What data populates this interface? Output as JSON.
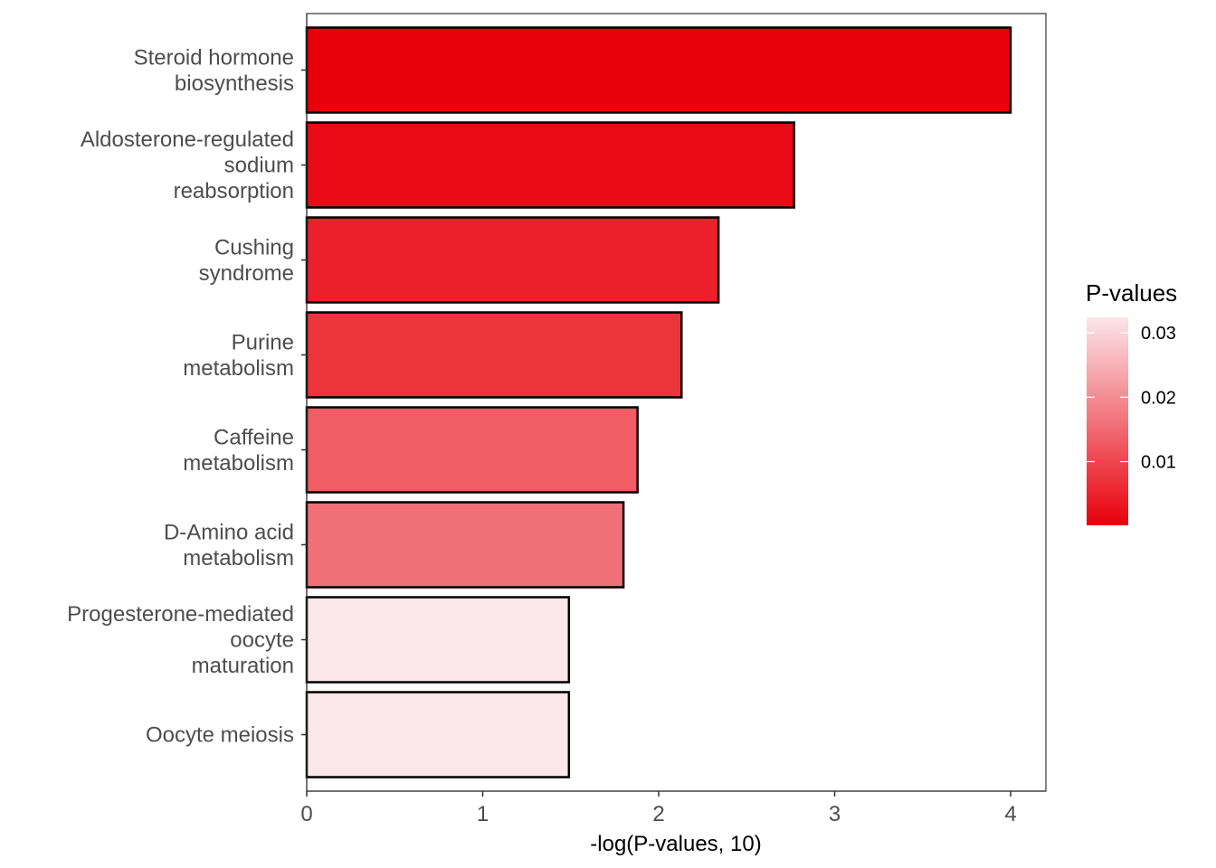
{
  "chart_data": {
    "type": "bar",
    "orientation": "horizontal",
    "categories": [
      [
        "Steroid hormone",
        "biosynthesis"
      ],
      [
        "Aldosterone-regulated",
        "sodium",
        "reabsorption"
      ],
      [
        "Cushing",
        "syndrome"
      ],
      [
        "Purine",
        "metabolism"
      ],
      [
        "Caffeine",
        "metabolism"
      ],
      [
        "D-Amino acid",
        "metabolism"
      ],
      [
        "Progesterone-mediated",
        "oocyte",
        "maturation"
      ],
      [
        "Oocyte meiosis"
      ]
    ],
    "values": [
      4.0,
      2.77,
      2.34,
      2.13,
      1.88,
      1.8,
      1.49,
      1.49
    ],
    "p_values": [
      0.0001,
      0.0017,
      0.0046,
      0.0074,
      0.0132,
      0.0158,
      0.0324,
      0.0324
    ],
    "xlabel": "-log(P-values, 10)",
    "ylabel": "",
    "xlim": [
      0,
      4.2
    ],
    "xticks": [
      "0",
      "1",
      "2",
      "3",
      "4"
    ],
    "grid": false,
    "legend": {
      "title": "P-values",
      "placement": "right",
      "labels": [
        "0.01",
        "0.02",
        "0.03"
      ],
      "label_values": [
        0.01,
        0.02,
        0.03
      ],
      "range": [
        0.0001,
        0.0324
      ],
      "color_low": "#e8000b",
      "color_high": "#fbe6e9"
    },
    "bar_outline": "#000000"
  }
}
